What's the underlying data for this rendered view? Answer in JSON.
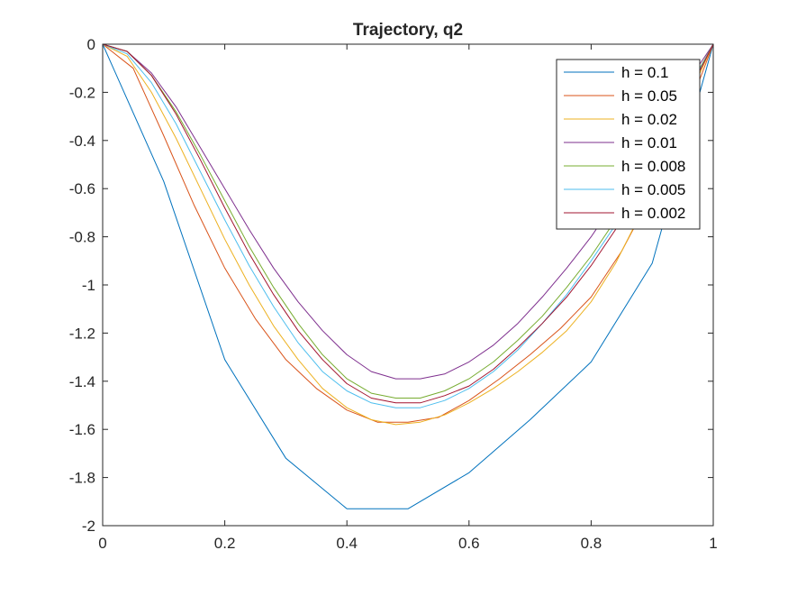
{
  "chart_data": {
    "type": "line",
    "title": "Trajectory, q2",
    "xlabel": "",
    "ylabel": "",
    "xlim": [
      0,
      1
    ],
    "ylim": [
      -2,
      0
    ],
    "xticks": [
      0,
      0.2,
      0.4,
      0.6,
      0.8,
      1
    ],
    "yticks": [
      0,
      -0.2,
      -0.4,
      -0.6,
      -0.8,
      -1,
      -1.2,
      -1.4,
      -1.6,
      -1.8,
      -2
    ],
    "xtick_labels": [
      "0",
      "0.2",
      "0.4",
      "0.6",
      "0.8",
      "1"
    ],
    "ytick_labels": [
      "0",
      "-0.2",
      "-0.4",
      "-0.6",
      "-0.8",
      "-1",
      "-1.2",
      "-1.4",
      "-1.6",
      "-1.8",
      "-2"
    ],
    "grid": false,
    "legend_position": "top-right",
    "series": [
      {
        "name": "h = 0.1",
        "color": "#0072BD",
        "x": [
          0,
          0.1,
          0.2,
          0.3,
          0.4,
          0.5,
          0.6,
          0.7,
          0.8,
          0.9,
          1.0
        ],
        "y": [
          0,
          -0.57,
          -1.31,
          -1.72,
          -1.93,
          -1.93,
          -1.78,
          -1.56,
          -1.32,
          -0.91,
          0
        ]
      },
      {
        "name": "h = 0.05",
        "color": "#D95319",
        "x": [
          0,
          0.05,
          0.1,
          0.15,
          0.2,
          0.25,
          0.3,
          0.35,
          0.4,
          0.45,
          0.5,
          0.55,
          0.6,
          0.65,
          0.7,
          0.75,
          0.8,
          0.85,
          0.9,
          0.95,
          1.0
        ],
        "y": [
          0,
          -0.1,
          -0.38,
          -0.67,
          -0.93,
          -1.14,
          -1.31,
          -1.43,
          -1.52,
          -1.57,
          -1.57,
          -1.55,
          -1.48,
          -1.39,
          -1.29,
          -1.18,
          -1.05,
          -0.86,
          -0.62,
          -0.33,
          0
        ]
      },
      {
        "name": "h = 0.02",
        "color": "#EDB120",
        "x": [
          0,
          0.04,
          0.08,
          0.12,
          0.16,
          0.2,
          0.24,
          0.28,
          0.32,
          0.36,
          0.4,
          0.44,
          0.48,
          0.52,
          0.56,
          0.6,
          0.64,
          0.68,
          0.72,
          0.76,
          0.8,
          0.84,
          0.88,
          0.92,
          0.96,
          1.0
        ],
        "y": [
          0,
          -0.05,
          -0.2,
          -0.39,
          -0.6,
          -0.81,
          -1.0,
          -1.17,
          -1.31,
          -1.43,
          -1.51,
          -1.56,
          -1.58,
          -1.57,
          -1.54,
          -1.49,
          -1.43,
          -1.36,
          -1.28,
          -1.19,
          -1.07,
          -0.91,
          -0.71,
          -0.47,
          -0.22,
          0
        ]
      },
      {
        "name": "h = 0.01",
        "color": "#7E2F8E",
        "x": [
          0,
          0.04,
          0.08,
          0.12,
          0.16,
          0.2,
          0.24,
          0.28,
          0.32,
          0.36,
          0.4,
          0.44,
          0.48,
          0.52,
          0.56,
          0.6,
          0.64,
          0.68,
          0.72,
          0.76,
          0.8,
          0.84,
          0.88,
          0.92,
          0.96,
          1.0
        ],
        "y": [
          0,
          -0.03,
          -0.12,
          -0.26,
          -0.43,
          -0.6,
          -0.77,
          -0.93,
          -1.07,
          -1.19,
          -1.29,
          -1.36,
          -1.39,
          -1.39,
          -1.37,
          -1.32,
          -1.25,
          -1.16,
          -1.05,
          -0.93,
          -0.8,
          -0.65,
          -0.49,
          -0.32,
          -0.15,
          0
        ]
      },
      {
        "name": "h = 0.008",
        "color": "#77AC30",
        "x": [
          0,
          0.04,
          0.08,
          0.12,
          0.16,
          0.2,
          0.24,
          0.28,
          0.32,
          0.36,
          0.4,
          0.44,
          0.48,
          0.52,
          0.56,
          0.6,
          0.64,
          0.68,
          0.72,
          0.76,
          0.8,
          0.84,
          0.88,
          0.92,
          0.96,
          1.0
        ],
        "y": [
          0,
          -0.03,
          -0.13,
          -0.28,
          -0.46,
          -0.65,
          -0.84,
          -1.01,
          -1.16,
          -1.29,
          -1.39,
          -1.45,
          -1.47,
          -1.47,
          -1.44,
          -1.39,
          -1.32,
          -1.23,
          -1.13,
          -1.01,
          -0.88,
          -0.73,
          -0.56,
          -0.38,
          -0.18,
          0
        ]
      },
      {
        "name": "h = 0.005",
        "color": "#4DBEEE",
        "x": [
          0,
          0.04,
          0.08,
          0.12,
          0.16,
          0.2,
          0.24,
          0.28,
          0.32,
          0.36,
          0.4,
          0.44,
          0.48,
          0.52,
          0.56,
          0.6,
          0.64,
          0.68,
          0.72,
          0.76,
          0.8,
          0.84,
          0.88,
          0.92,
          0.96,
          1.0
        ],
        "y": [
          0,
          -0.04,
          -0.16,
          -0.33,
          -0.53,
          -0.73,
          -0.92,
          -1.09,
          -1.24,
          -1.36,
          -1.44,
          -1.49,
          -1.51,
          -1.51,
          -1.48,
          -1.43,
          -1.36,
          -1.27,
          -1.16,
          -1.04,
          -0.9,
          -0.75,
          -0.58,
          -0.39,
          -0.19,
          0
        ]
      },
      {
        "name": "h = 0.002",
        "color": "#A2142F",
        "x": [
          0,
          0.04,
          0.08,
          0.12,
          0.16,
          0.2,
          0.24,
          0.28,
          0.32,
          0.36,
          0.4,
          0.44,
          0.48,
          0.52,
          0.56,
          0.6,
          0.64,
          0.68,
          0.72,
          0.76,
          0.8,
          0.84,
          0.88,
          0.92,
          0.96,
          1.0
        ],
        "y": [
          0,
          -0.03,
          -0.13,
          -0.29,
          -0.48,
          -0.68,
          -0.87,
          -1.04,
          -1.19,
          -1.31,
          -1.41,
          -1.47,
          -1.49,
          -1.49,
          -1.46,
          -1.42,
          -1.35,
          -1.26,
          -1.16,
          -1.05,
          -0.92,
          -0.77,
          -0.6,
          -0.41,
          -0.2,
          0
        ]
      }
    ]
  }
}
